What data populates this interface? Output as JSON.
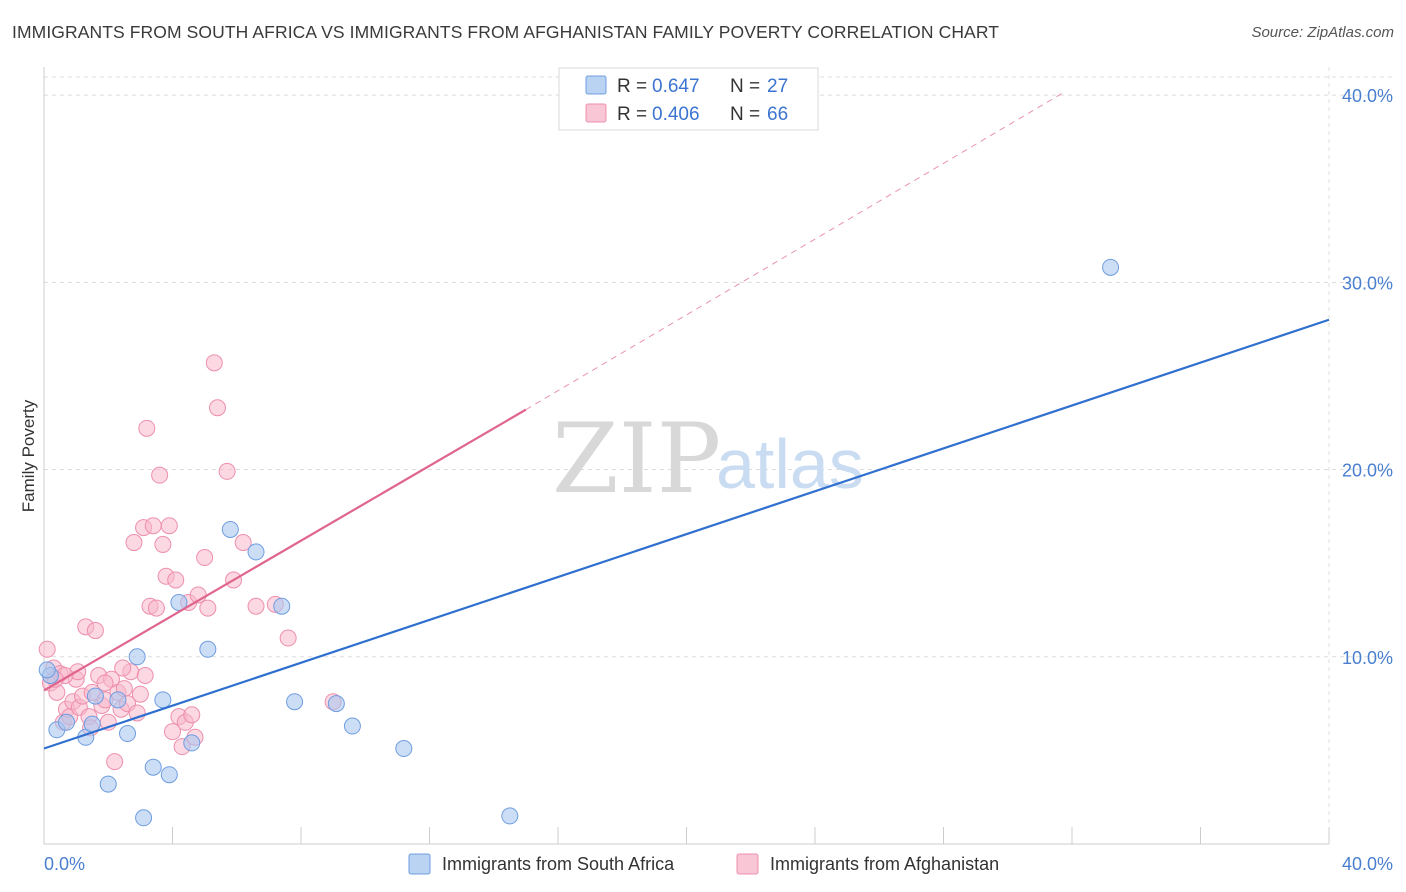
{
  "title": "IMMIGRANTS FROM SOUTH AFRICA VS IMMIGRANTS FROM AFGHANISTAN FAMILY POVERTY CORRELATION CHART",
  "source": "Source: ZipAtlas.com",
  "watermark": {
    "zip": "ZIP",
    "atlas": "atlas"
  },
  "colors": {
    "blue_fill": "#aac8f0",
    "blue_stroke": "#6f9de0",
    "blue_line": "#2f6fcf",
    "pink_fill": "#f7b8cb",
    "pink_stroke": "#ee8fae",
    "pink_line": "#e0658e",
    "tick_text": "#4a7fd0",
    "grid": "#dcdcdc"
  },
  "legend": {
    "rows": [
      {
        "r_label": "R =",
        "r_value": "0.647",
        "n_label": "N =",
        "n_value": "27",
        "color": "#aac8f0"
      },
      {
        "r_label": "R =",
        "r_value": "0.406",
        "n_label": "N =",
        "n_value": "66",
        "color": "#f7b8cb"
      }
    ]
  },
  "chart_data": {
    "type": "scatter",
    "title": "IMMIGRANTS FROM SOUTH AFRICA VS IMMIGRANTS FROM AFGHANISTAN FAMILY POVERTY CORRELATION CHART",
    "xlabel": "",
    "ylabel": "Family Poverty",
    "xlim": [
      0,
      40
    ],
    "ylim": [
      0,
      41.5
    ],
    "x_tick_labels": [
      "0.0%",
      "40.0%"
    ],
    "y_tick_labels": [
      "10.0%",
      "20.0%",
      "30.0%",
      "40.0%"
    ],
    "y_ticks": [
      10,
      20,
      30,
      40
    ],
    "grid": true,
    "series": [
      {
        "name": "Immigrants from South Africa",
        "color": "#aac8f0",
        "trend": {
          "x0": 0,
          "y0": 5.1,
          "x1": 40,
          "y1": 28.0,
          "dashed_to": null
        },
        "points": [
          [
            0.2,
            9.0
          ],
          [
            0.4,
            6.1
          ],
          [
            0.7,
            6.5
          ],
          [
            1.3,
            5.7
          ],
          [
            1.5,
            6.4
          ],
          [
            1.6,
            7.9
          ],
          [
            2.0,
            3.2
          ],
          [
            2.3,
            7.7
          ],
          [
            2.6,
            5.9
          ],
          [
            2.9,
            10.0
          ],
          [
            3.1,
            1.4
          ],
          [
            3.4,
            4.1
          ],
          [
            3.7,
            7.7
          ],
          [
            3.9,
            3.7
          ],
          [
            4.2,
            12.9
          ],
          [
            4.6,
            5.4
          ],
          [
            5.1,
            10.4
          ],
          [
            5.8,
            16.8
          ],
          [
            6.6,
            15.6
          ],
          [
            7.4,
            12.7
          ],
          [
            7.8,
            7.6
          ],
          [
            9.1,
            7.5
          ],
          [
            9.6,
            6.3
          ],
          [
            11.2,
            5.1
          ],
          [
            14.5,
            1.5
          ],
          [
            33.2,
            30.8
          ],
          [
            0.1,
            9.3
          ]
        ]
      },
      {
        "name": "Immigrants from Afghanistan",
        "color": "#f7b8cb",
        "trend": {
          "x0": 0,
          "y0": 8.2,
          "x1": 15.0,
          "y1": 23.2,
          "dashed_x1": 31.8,
          "dashed_y1": 40.2
        },
        "points": [
          [
            0.1,
            10.4
          ],
          [
            0.2,
            8.6
          ],
          [
            0.3,
            9.4
          ],
          [
            0.4,
            8.1
          ],
          [
            0.5,
            9.1
          ],
          [
            0.6,
            6.5
          ],
          [
            0.7,
            7.2
          ],
          [
            0.8,
            6.8
          ],
          [
            0.9,
            7.6
          ],
          [
            1.0,
            8.8
          ],
          [
            1.1,
            7.3
          ],
          [
            1.2,
            7.9
          ],
          [
            1.3,
            11.6
          ],
          [
            1.4,
            6.8
          ],
          [
            1.5,
            8.1
          ],
          [
            1.6,
            11.4
          ],
          [
            1.7,
            9.0
          ],
          [
            1.8,
            7.4
          ],
          [
            1.9,
            7.7
          ],
          [
            2.0,
            6.5
          ],
          [
            2.1,
            8.8
          ],
          [
            2.2,
            4.4
          ],
          [
            2.3,
            8.1
          ],
          [
            2.4,
            7.2
          ],
          [
            2.5,
            8.3
          ],
          [
            2.6,
            7.5
          ],
          [
            2.7,
            9.2
          ],
          [
            2.8,
            16.1
          ],
          [
            2.9,
            7.0
          ],
          [
            3.0,
            8.0
          ],
          [
            3.1,
            16.9
          ],
          [
            3.2,
            22.2
          ],
          [
            3.3,
            12.7
          ],
          [
            3.4,
            17.0
          ],
          [
            3.5,
            12.6
          ],
          [
            3.6,
            19.7
          ],
          [
            3.7,
            16.0
          ],
          [
            3.8,
            14.3
          ],
          [
            3.9,
            17.0
          ],
          [
            4.0,
            6.0
          ],
          [
            4.1,
            14.1
          ],
          [
            4.2,
            6.8
          ],
          [
            4.3,
            5.2
          ],
          [
            4.4,
            6.5
          ],
          [
            4.5,
            12.9
          ],
          [
            4.6,
            6.9
          ],
          [
            4.7,
            5.7
          ],
          [
            4.8,
            13.3
          ],
          [
            5.0,
            15.3
          ],
          [
            5.1,
            12.6
          ],
          [
            5.3,
            25.7
          ],
          [
            5.4,
            23.3
          ],
          [
            5.7,
            19.9
          ],
          [
            5.9,
            14.1
          ],
          [
            6.2,
            16.1
          ],
          [
            6.6,
            12.7
          ],
          [
            7.2,
            12.8
          ],
          [
            7.6,
            11.0
          ],
          [
            9.0,
            7.6
          ],
          [
            1.05,
            9.2
          ],
          [
            0.65,
            9.0
          ],
          [
            1.45,
            6.2
          ],
          [
            1.9,
            8.6
          ],
          [
            2.45,
            9.4
          ],
          [
            3.15,
            9.0
          ],
          [
            0.35,
            8.8
          ]
        ]
      }
    ]
  },
  "bottom_legend": [
    {
      "label": "Immigrants from South Africa",
      "color": "#aac8f0"
    },
    {
      "label": "Immigrants from Afghanistan",
      "color": "#f7b8cb"
    }
  ]
}
